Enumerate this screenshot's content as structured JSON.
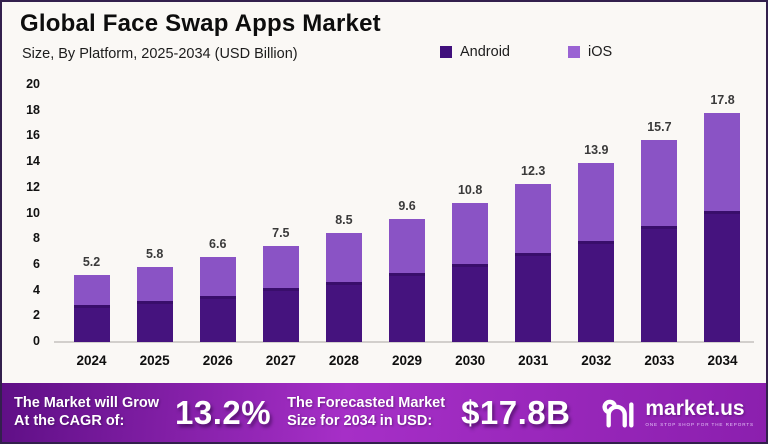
{
  "header": {
    "title": "Global Face Swap Apps Market",
    "subtitle": "Size, By Platform, 2025-2034 (USD Billion)"
  },
  "legend": [
    {
      "label": "Android",
      "color": "#40107c"
    },
    {
      "label": "iOS",
      "color": "#9a63d3"
    }
  ],
  "chart_data": {
    "type": "bar",
    "stacked": true,
    "title": "Global Face Swap Apps Market",
    "xlabel": "",
    "ylabel": "",
    "categories": [
      "2024",
      "2025",
      "2026",
      "2027",
      "2028",
      "2029",
      "2030",
      "2031",
      "2032",
      "2033",
      "2034"
    ],
    "series": [
      {
        "name": "Android",
        "color": "#45137e",
        "values": [
          2.9,
          3.2,
          3.6,
          4.2,
          4.7,
          5.4,
          6.1,
          6.9,
          7.9,
          9.0,
          10.2
        ]
      },
      {
        "name": "iOS",
        "color": "#8a53c5",
        "values": [
          2.3,
          2.6,
          3.0,
          3.3,
          3.8,
          4.2,
          4.7,
          5.4,
          6.0,
          6.7,
          7.6
        ]
      }
    ],
    "totals": [
      5.2,
      5.8,
      6.6,
      7.5,
      8.5,
      9.6,
      10.8,
      12.3,
      13.9,
      15.7,
      17.8
    ],
    "total_labels": [
      "5.2",
      "5.8",
      "6.6",
      "7.5",
      "8.5",
      "9.6",
      "10.8",
      "12.3",
      "13.9",
      "15.7",
      "17.8"
    ],
    "ylim": [
      0,
      20
    ],
    "yticks": [
      0,
      2,
      4,
      6,
      8,
      10,
      12,
      14,
      16,
      18,
      20
    ],
    "grid": false,
    "legend_position": "top-right"
  },
  "banner": {
    "cagr_label_line1": "The Market will Grow",
    "cagr_label_line2": "At the CAGR of:",
    "cagr_value": "13.2%",
    "forecast_label_line1": "The Forecasted Market",
    "forecast_label_line2": "Size for 2034 in USD:",
    "forecast_value": "$17.8B",
    "logo_text": "market.us",
    "logo_tagline": "ONE STOP SHOP FOR THE REPORTS",
    "gradient_colors": [
      "#5f0f86",
      "#a62fc7",
      "#8b1fae"
    ]
  }
}
